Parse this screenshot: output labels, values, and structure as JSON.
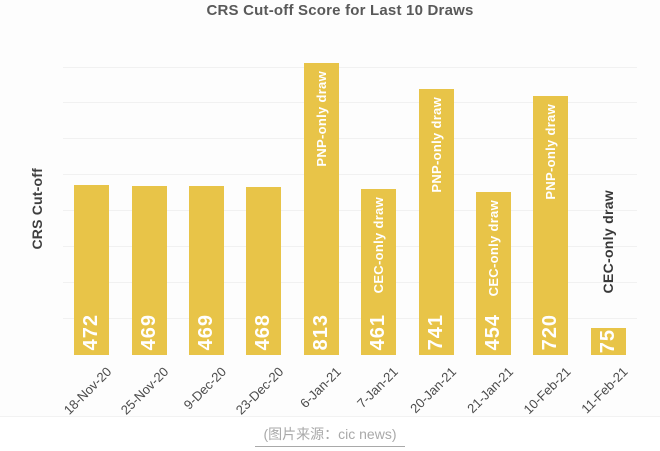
{
  "page": {
    "caption": "(图片来源：cic news)"
  },
  "chart_data": {
    "type": "bar",
    "title": "CRS Cut-off Score for Last 10 Draws",
    "xlabel": "",
    "ylabel": "CRS Cut-off",
    "categories": [
      "18-Nov-20",
      "25-Nov-20",
      "9-Dec-20",
      "23-Dec-20",
      "6-Jan-21",
      "7-Jan-21",
      "20-Jan-21",
      "21-Jan-21",
      "10-Feb-21",
      "11-Feb-21"
    ],
    "values": [
      472,
      469,
      469,
      468,
      813,
      461,
      741,
      454,
      720,
      75
    ],
    "bar_labels_inside": [
      null,
      null,
      null,
      null,
      "PNP-only draw",
      "CEC-only draw",
      "PNP-only draw",
      "CEC-only draw",
      "PNP-only draw",
      null
    ],
    "bar_labels_outside": [
      null,
      null,
      null,
      null,
      null,
      null,
      null,
      null,
      null,
      "CEC-only draw"
    ],
    "ylim": [
      0,
      910
    ],
    "gridline_interval": 100,
    "grid": "horizontal",
    "legend": "none",
    "colors": {
      "bar": "#E8C448",
      "value_label": "#FFFFFF",
      "inside_label": "#FFFFFF",
      "outside_label": "#383838",
      "title": "#595959",
      "axis_label": "#3F3F3F",
      "tick_label": "#4A4A4A",
      "gridline": "#F1F1F1",
      "caption": "#A9A9A9"
    }
  }
}
